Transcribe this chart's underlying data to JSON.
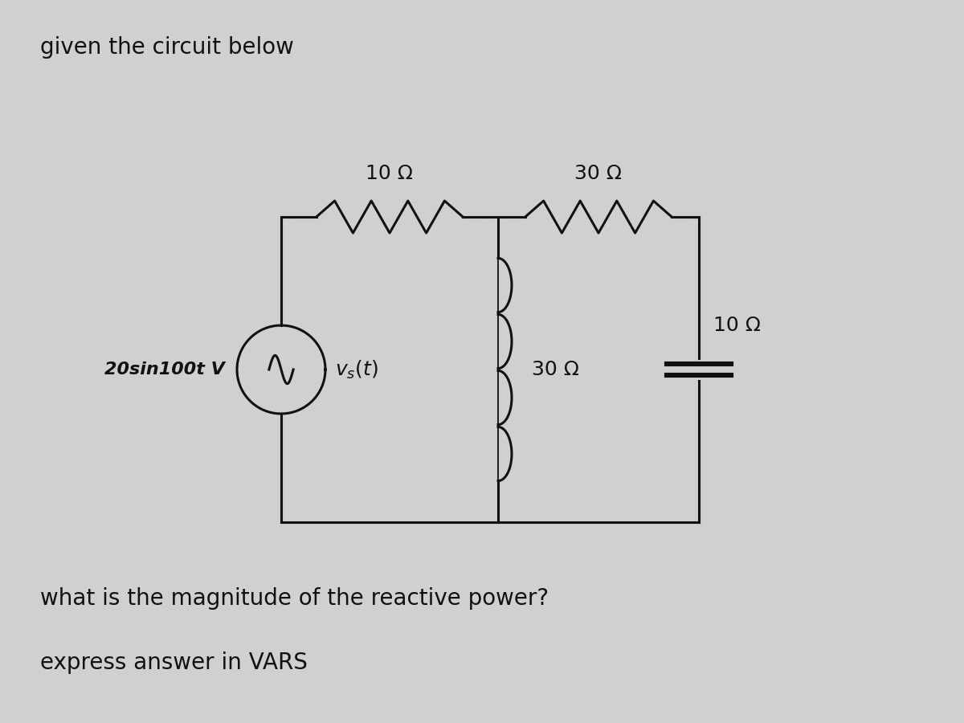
{
  "title": "given the circuit below",
  "question": "what is the magnitude of the reactive power?",
  "answer_note": "express answer in VARS",
  "bg_color": "#d0d0d0",
  "text_color": "#111111",
  "title_fontsize": 20,
  "question_fontsize": 20,
  "answer_fontsize": 20,
  "circuit": {
    "vs_label": "20sin100t V",
    "vs_sub": "$v_s(t)$",
    "r1_label": "10 Ω",
    "r2_label": "30 Ω",
    "ind_label": "30 Ω",
    "cap_label": "10 Ω"
  }
}
